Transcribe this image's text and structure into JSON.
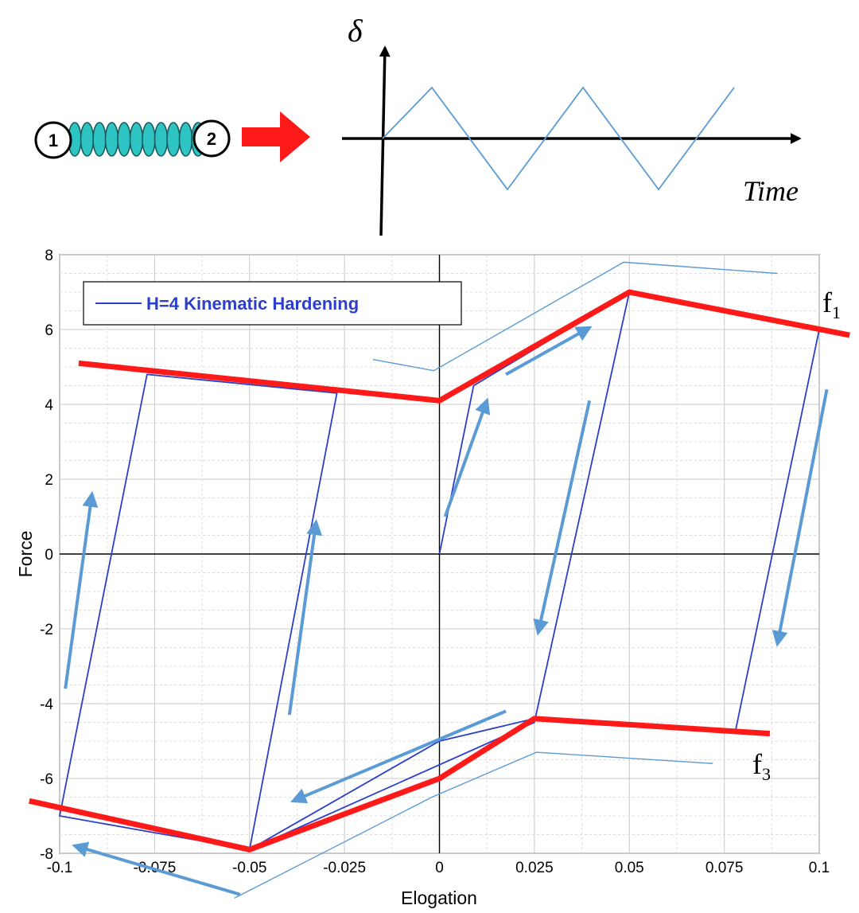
{
  "colors": {
    "hysteresis": "#2b3fc9",
    "envelope": "#ff1a1a",
    "direction_arrow": "#5b9bd5",
    "grid": "#c8c8c8",
    "spring": "#2ec4c4"
  },
  "top_diagram": {
    "node1_label": "1",
    "node2_label": "2",
    "y_symbol": "δ",
    "x_label": "Time",
    "signal_peaks": [
      0,
      1,
      -1,
      1,
      -1,
      1
    ]
  },
  "annotations": {
    "f1": {
      "base": "f",
      "sub": "1"
    },
    "f3": {
      "base": "f",
      "sub": "3"
    }
  },
  "chart_data": {
    "type": "line",
    "title": "",
    "xlabel": "Elogation",
    "ylabel": "Force",
    "xlim": [
      -0.1,
      0.1
    ],
    "ylim": [
      -8,
      8
    ],
    "grid": true,
    "legend_placement": "top-left",
    "x_ticks": [
      "-0.1",
      "-0.075",
      "-0.05",
      "-0.025",
      "0",
      "0.025",
      "0.05",
      "0.075",
      "0.1"
    ],
    "y_ticks": [
      "-8",
      "-6",
      "-4",
      "-2",
      "0",
      "2",
      "4",
      "6",
      "8"
    ],
    "series": [
      {
        "name": "H=4 Kinematic Hardening",
        "x": [
          0,
          0.009,
          0.05,
          0.025,
          -0.05,
          -0.027,
          -0.077,
          -0.1,
          -0.05,
          0,
          0.025,
          0.078,
          0.1
        ],
        "y": [
          0,
          4.5,
          7,
          -4.5,
          -7.9,
          4.3,
          4.8,
          -7,
          -7.9,
          -5,
          -4.4,
          -4.7,
          6
        ]
      }
    ],
    "envelope_curves": [
      {
        "label": "f1",
        "x": [
          -0.095,
          0,
          0.05,
          0.108
        ],
        "y": [
          5.1,
          4.1,
          7,
          5.85
        ]
      },
      {
        "label": "f3",
        "x": [
          -0.108,
          -0.05,
          0,
          0.025,
          0.087
        ],
        "y": [
          -6.6,
          -7.9,
          -6,
          -4.4,
          -4.8
        ]
      }
    ]
  }
}
